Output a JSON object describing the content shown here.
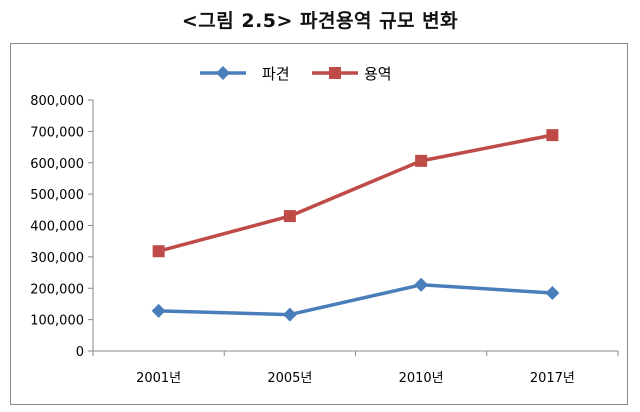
{
  "title": "<그림 2.5> 파견용역 규모 변화",
  "chart_data": {
    "type": "line",
    "title": "",
    "xlabel": "",
    "ylabel": "",
    "categories": [
      "2001년",
      "2005년",
      "2010년",
      "2017년"
    ],
    "series": [
      {
        "name": "파견",
        "color": "#4a7ebb",
        "marker": "diamond",
        "values": [
          128000,
          116000,
          211000,
          185000
        ]
      },
      {
        "name": "용역",
        "color": "#be4b48",
        "marker": "square",
        "values": [
          318000,
          430000,
          606000,
          688000
        ]
      }
    ],
    "ylim": [
      0,
      800000
    ],
    "yticks": [
      0,
      100000,
      200000,
      300000,
      400000,
      500000,
      600000,
      700000,
      800000
    ],
    "ytick_labels": [
      "0",
      "100,000",
      "200,000",
      "300,000",
      "400,000",
      "500,000",
      "600,000",
      "700,000",
      "800,000"
    ],
    "legend_position": "top-center",
    "grid": false
  }
}
